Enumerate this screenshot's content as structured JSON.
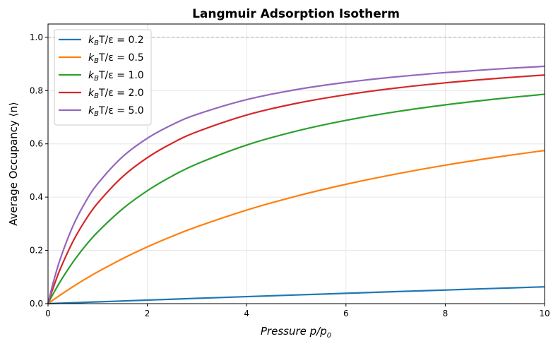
{
  "chart_data": {
    "type": "line",
    "title": "Langmuir Adsorption Isotherm",
    "xlabel": "Pressure p/p_0",
    "ylabel": "Average Occupancy ⟨n⟩",
    "xlim": [
      0,
      10
    ],
    "ylim": [
      0,
      1.05
    ],
    "xticks": [
      0,
      2,
      4,
      6,
      8,
      10
    ],
    "yticks": [
      0.0,
      0.2,
      0.4,
      0.6,
      0.8,
      1.0
    ],
    "xtick_labels": [
      "0",
      "2",
      "4",
      "6",
      "8",
      "10"
    ],
    "ytick_labels": [
      "0.0",
      "0.2",
      "0.4",
      "0.6",
      "0.8",
      "1.0"
    ],
    "grid": true,
    "legend_position": "top-left",
    "reference_line": {
      "y": 1.0,
      "style": "dashed",
      "color": "#aaaaaa"
    },
    "x": [
      0,
      0.1,
      0.25,
      0.5,
      0.75,
      1,
      1.5,
      2,
      2.5,
      3,
      4,
      5,
      6,
      7,
      8,
      9,
      10
    ],
    "series": [
      {
        "name": "k_BT/ε = 0.2",
        "color": "#1f77b4",
        "values": [
          0,
          0.0007,
          0.0017,
          0.0034,
          0.005,
          0.0067,
          0.01,
          0.0133,
          0.0166,
          0.0198,
          0.0263,
          0.0326,
          0.0388,
          0.045,
          0.0511,
          0.0572,
          0.0631
        ]
      },
      {
        "name": "k_BT/ε = 0.5",
        "color": "#ff7f0e",
        "values": [
          0,
          0.0134,
          0.0327,
          0.0634,
          0.0922,
          0.1192,
          0.1688,
          0.213,
          0.2528,
          0.2888,
          0.3512,
          0.4036,
          0.4481,
          0.4865,
          0.5199,
          0.5492,
          0.5751
        ]
      },
      {
        "name": "k_BT/ε = 1.0",
        "color": "#2ca02c",
        "values": [
          0,
          0.0355,
          0.0842,
          0.1554,
          0.2163,
          0.2689,
          0.3556,
          0.4239,
          0.4791,
          0.5246,
          0.5954,
          0.6478,
          0.6882,
          0.7203,
          0.7464,
          0.768,
          0.7863
        ]
      },
      {
        "name": "k_BT/ε = 2.0",
        "color": "#d62728",
        "values": [
          0,
          0.0572,
          0.1317,
          0.2327,
          0.3127,
          0.3775,
          0.4764,
          0.5481,
          0.6026,
          0.6453,
          0.7081,
          0.752,
          0.7844,
          0.8094,
          0.8291,
          0.8452,
          0.8585
        ]
      },
      {
        "name": "k_BT/ε = 5.0",
        "color": "#9467bd",
        "values": [
          0,
          0.0757,
          0.1699,
          0.2905,
          0.3804,
          0.4502,
          0.5512,
          0.6209,
          0.6718,
          0.7107,
          0.7661,
          0.8037,
          0.8309,
          0.8514,
          0.8676,
          0.8805,
          0.8912
        ]
      }
    ]
  }
}
